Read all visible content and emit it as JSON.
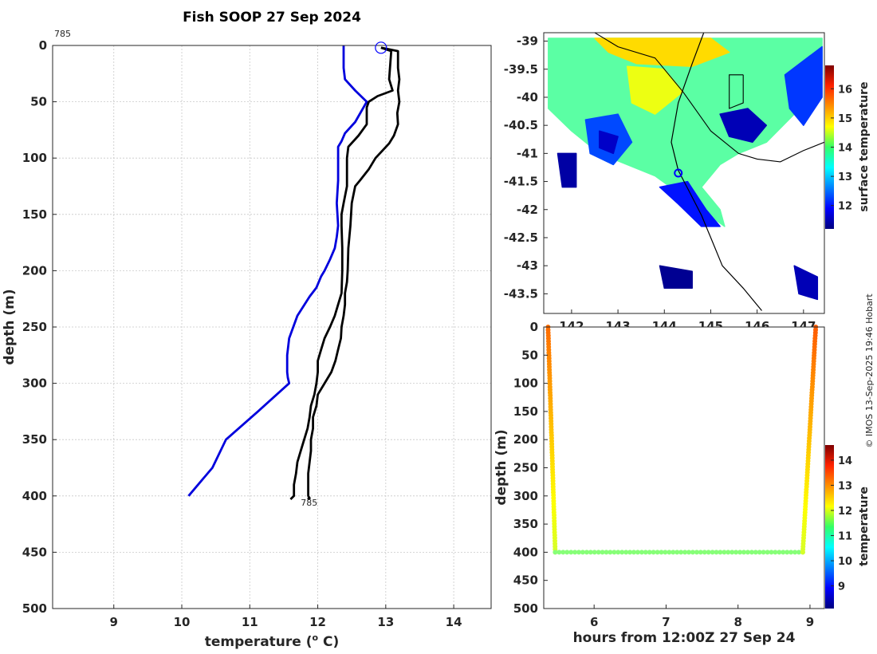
{
  "credit": "© IMOS 13-Sep-2025 19:46 Hobart",
  "colors": {
    "profile_blue": "#0000dd",
    "profile_black": "#000000",
    "marker": "#0000ff"
  },
  "chart_data": [
    {
      "id": "profile",
      "type": "line",
      "title": "Fish SOOP 27 Sep 2024",
      "xlabel": "temperature (",
      "xlabel_sup": "o",
      "xlabel_end": " C)",
      "ylabel": "depth (m)",
      "xlim": [
        8.1,
        14.55
      ],
      "ylim": [
        500,
        0
      ],
      "xticks": [
        9,
        10,
        11,
        12,
        13,
        14
      ],
      "yticks": [
        0,
        50,
        100,
        150,
        200,
        250,
        300,
        350,
        400,
        450,
        500
      ],
      "start_label": "785",
      "end_label": "785",
      "end_label_at": [
        11.75,
        403
      ],
      "marker": [
        12.93,
        2
      ],
      "series": [
        {
          "name": "climatology",
          "color": "#0000dd",
          "temperature": [
            12.38,
            12.38,
            12.4,
            12.55,
            12.72,
            12.55,
            12.4,
            12.35,
            12.3,
            12.3,
            12.3,
            12.28,
            12.3,
            12.28,
            12.25,
            12.18,
            12.1,
            12.05,
            11.98,
            11.88,
            11.7,
            11.58,
            11.55,
            11.55,
            11.56,
            11.58,
            11.12,
            10.65,
            10.45,
            10.1
          ],
          "depth": [
            0,
            20,
            30,
            40,
            50,
            68,
            78,
            85,
            90,
            100,
            120,
            140,
            160,
            170,
            180,
            190,
            200,
            205,
            215,
            223,
            240,
            260,
            275,
            290,
            295,
            300,
            325,
            350,
            375,
            400
          ]
        },
        {
          "name": "downcast",
          "color": "#000000",
          "temperature": [
            12.93,
            13.18,
            13.18,
            13.2,
            13.18,
            13.2,
            13.17,
            13.18,
            13.12,
            13.05,
            12.85,
            12.75,
            12.62,
            12.55,
            12.5,
            12.48,
            12.45,
            12.44,
            12.43,
            12.4,
            12.4,
            12.38,
            12.35,
            12.34,
            12.3,
            12.26,
            12.2,
            12.1,
            12.0,
            11.98,
            11.93,
            11.93,
            11.9,
            11.9,
            11.88,
            11.86,
            11.86,
            11.86,
            11.86,
            11.88,
            11.85
          ],
          "depth": [
            2,
            5,
            20,
            30,
            40,
            50,
            60,
            70,
            80,
            87,
            100,
            110,
            120,
            125,
            140,
            160,
            180,
            200,
            210,
            220,
            230,
            240,
            250,
            260,
            270,
            280,
            290,
            300,
            310,
            320,
            330,
            340,
            350,
            360,
            370,
            380,
            390,
            395,
            400,
            402,
            403
          ]
        },
        {
          "name": "upcast",
          "color": "#000000",
          "temperature": [
            12.93,
            13.08,
            13.05,
            13.1,
            12.88,
            12.75,
            12.72,
            12.72,
            12.6,
            12.45,
            12.43,
            12.43,
            12.38,
            12.35,
            12.35,
            12.36,
            12.36,
            12.35,
            12.3,
            12.25,
            12.18,
            12.1,
            12.05,
            12.0,
            12.0,
            11.98,
            11.95,
            11.9,
            11.88,
            11.85,
            11.8,
            11.75,
            11.7,
            11.68,
            11.65,
            11.65,
            11.6
          ],
          "depth": [
            2,
            5,
            30,
            40,
            45,
            50,
            55,
            70,
            80,
            90,
            100,
            125,
            140,
            150,
            160,
            180,
            200,
            220,
            230,
            240,
            250,
            260,
            270,
            280,
            290,
            300,
            310,
            320,
            330,
            340,
            350,
            360,
            370,
            380,
            390,
            400,
            403
          ]
        }
      ]
    },
    {
      "id": "sst_map",
      "type": "heatmap",
      "title": "",
      "xlim": [
        141.4,
        147.45
      ],
      "ylim": [
        -43.85,
        -38.85
      ],
      "xticks": [
        142,
        143,
        144,
        145,
        146,
        147
      ],
      "yticks": [
        -39,
        -39.5,
        -40,
        -40.5,
        -41,
        -41.5,
        -42,
        -42.5,
        -43,
        -43.5
      ],
      "colorbar_label": "surface temperature",
      "colorbar_ticks": [
        12,
        13,
        14,
        15,
        16
      ],
      "colorbar_range": [
        11.2,
        16.8
      ],
      "marker": [
        144.3,
        -41.35
      ],
      "regions": [
        {
          "value": 13.8,
          "points": [
            [
              141.5,
              -38.95
            ],
            [
              147.4,
              -38.95
            ],
            [
              147.4,
              -39.6
            ],
            [
              146.8,
              -40.3
            ],
            [
              146.2,
              -40.8
            ],
            [
              145.6,
              -41.0
            ],
            [
              145.2,
              -41.2
            ],
            [
              144.8,
              -41.6
            ],
            [
              145.2,
              -42.0
            ],
            [
              145.3,
              -42.3
            ],
            [
              144.8,
              -42.0
            ],
            [
              144.3,
              -41.7
            ],
            [
              143.8,
              -41.4
            ],
            [
              143.2,
              -41.2
            ],
            [
              142.6,
              -41.0
            ],
            [
              142.0,
              -40.6
            ],
            [
              141.5,
              -40.2
            ]
          ]
        },
        {
          "value": 14.9,
          "points": [
            [
              142.5,
              -38.95
            ],
            [
              145.0,
              -38.95
            ],
            [
              145.4,
              -39.2
            ],
            [
              144.6,
              -39.45
            ],
            [
              143.4,
              -39.4
            ],
            [
              142.8,
              -39.2
            ]
          ]
        },
        {
          "value": 14.6,
          "points": [
            [
              143.2,
              -39.45
            ],
            [
              144.0,
              -39.5
            ],
            [
              144.4,
              -39.9
            ],
            [
              143.8,
              -40.3
            ],
            [
              143.3,
              -40.1
            ]
          ]
        },
        {
          "value": 12.2,
          "points": [
            [
              146.6,
              -39.6
            ],
            [
              147.4,
              -39.1
            ],
            [
              147.4,
              -40.0
            ],
            [
              147.0,
              -40.5
            ],
            [
              146.7,
              -40.2
            ]
          ]
        },
        {
          "value": 11.5,
          "points": [
            [
              145.2,
              -40.3
            ],
            [
              145.8,
              -40.2
            ],
            [
              146.2,
              -40.5
            ],
            [
              145.9,
              -40.8
            ],
            [
              145.4,
              -40.7
            ]
          ]
        },
        {
          "value": 12.3,
          "points": [
            [
              142.3,
              -40.4
            ],
            [
              143.0,
              -40.3
            ],
            [
              143.3,
              -40.8
            ],
            [
              142.9,
              -41.2
            ],
            [
              142.4,
              -41.0
            ]
          ]
        },
        {
          "value": 11.6,
          "points": [
            [
              142.6,
              -40.6
            ],
            [
              143.0,
              -40.7
            ],
            [
              142.9,
              -41.0
            ],
            [
              142.6,
              -40.9
            ]
          ]
        },
        {
          "value": 11.4,
          "points": [
            [
              141.7,
              -41.0
            ],
            [
              142.1,
              -41.0
            ],
            [
              142.1,
              -41.6
            ],
            [
              141.8,
              -41.6
            ]
          ]
        },
        {
          "value": 12.0,
          "points": [
            [
              143.9,
              -41.6
            ],
            [
              144.5,
              -41.5
            ],
            [
              144.9,
              -42.0
            ],
            [
              145.2,
              -42.3
            ],
            [
              144.8,
              -42.3
            ],
            [
              144.3,
              -41.9
            ]
          ]
        },
        {
          "value": 11.3,
          "points": [
            [
              143.9,
              -43.0
            ],
            [
              144.6,
              -43.1
            ],
            [
              144.6,
              -43.4
            ],
            [
              144.0,
              -43.4
            ]
          ]
        },
        {
          "value": 11.5,
          "points": [
            [
              146.8,
              -43.0
            ],
            [
              147.3,
              -43.2
            ],
            [
              147.3,
              -43.6
            ],
            [
              146.9,
              -43.5
            ]
          ]
        }
      ],
      "coastline": [
        [
          [
            141.6,
            -38.85
          ],
          [
            142.5,
            -38.85
          ],
          [
            143.0,
            -39.1
          ],
          [
            143.8,
            -39.3
          ],
          [
            144.4,
            -39.9
          ],
          [
            145.0,
            -40.6
          ],
          [
            145.6,
            -41.0
          ],
          [
            146.0,
            -41.1
          ],
          [
            146.5,
            -41.15
          ],
          [
            147.0,
            -40.95
          ],
          [
            147.45,
            -40.8
          ]
        ],
        [
          [
            145.7,
            -39.6
          ],
          [
            145.7,
            -40.1
          ],
          [
            145.4,
            -40.2
          ],
          [
            145.4,
            -39.6
          ],
          [
            145.7,
            -39.6
          ]
        ]
      ],
      "track": [
        [
          144.85,
          -38.85
        ],
        [
          144.6,
          -39.4
        ],
        [
          144.3,
          -40.1
        ],
        [
          144.15,
          -40.8
        ],
        [
          144.3,
          -41.3
        ],
        [
          144.55,
          -41.7
        ],
        [
          144.8,
          -42.1
        ],
        [
          145.05,
          -42.6
        ],
        [
          145.25,
          -43.0
        ],
        [
          145.7,
          -43.4
        ],
        [
          146.1,
          -43.8
        ]
      ]
    },
    {
      "id": "time_depth",
      "type": "scatter",
      "title": "",
      "xlabel": "hours from 12:00Z 27 Sep 24",
      "ylabel": "depth (m)",
      "xlim": [
        5.3,
        9.2
      ],
      "ylim": [
        500,
        0
      ],
      "xticks": [
        6,
        7,
        8,
        9
      ],
      "yticks": [
        0,
        50,
        100,
        150,
        200,
        250,
        300,
        350,
        400,
        450,
        500
      ],
      "colorbar_label": "temperature",
      "colorbar_ticks": [
        9,
        10,
        11,
        12,
        13,
        14
      ],
      "colorbar_range": [
        8.1,
        14.6
      ],
      "segments": [
        {
          "name": "descent",
          "hour_start": 5.36,
          "hour_end": 5.46,
          "depth_start": 0,
          "depth_end": 400,
          "temp_start": 13.1,
          "temp_end": 11.9,
          "count": 80
        },
        {
          "name": "tow",
          "hour_start": 5.46,
          "hour_end": 8.9,
          "depth_start": 400,
          "depth_end": 400,
          "temp_start": 11.4,
          "temp_end": 11.4,
          "count": 64
        },
        {
          "name": "ascent",
          "hour_start": 8.9,
          "hour_end": 9.08,
          "depth_start": 400,
          "depth_end": 0,
          "temp_start": 11.9,
          "temp_end": 13.2,
          "count": 80
        }
      ]
    }
  ]
}
